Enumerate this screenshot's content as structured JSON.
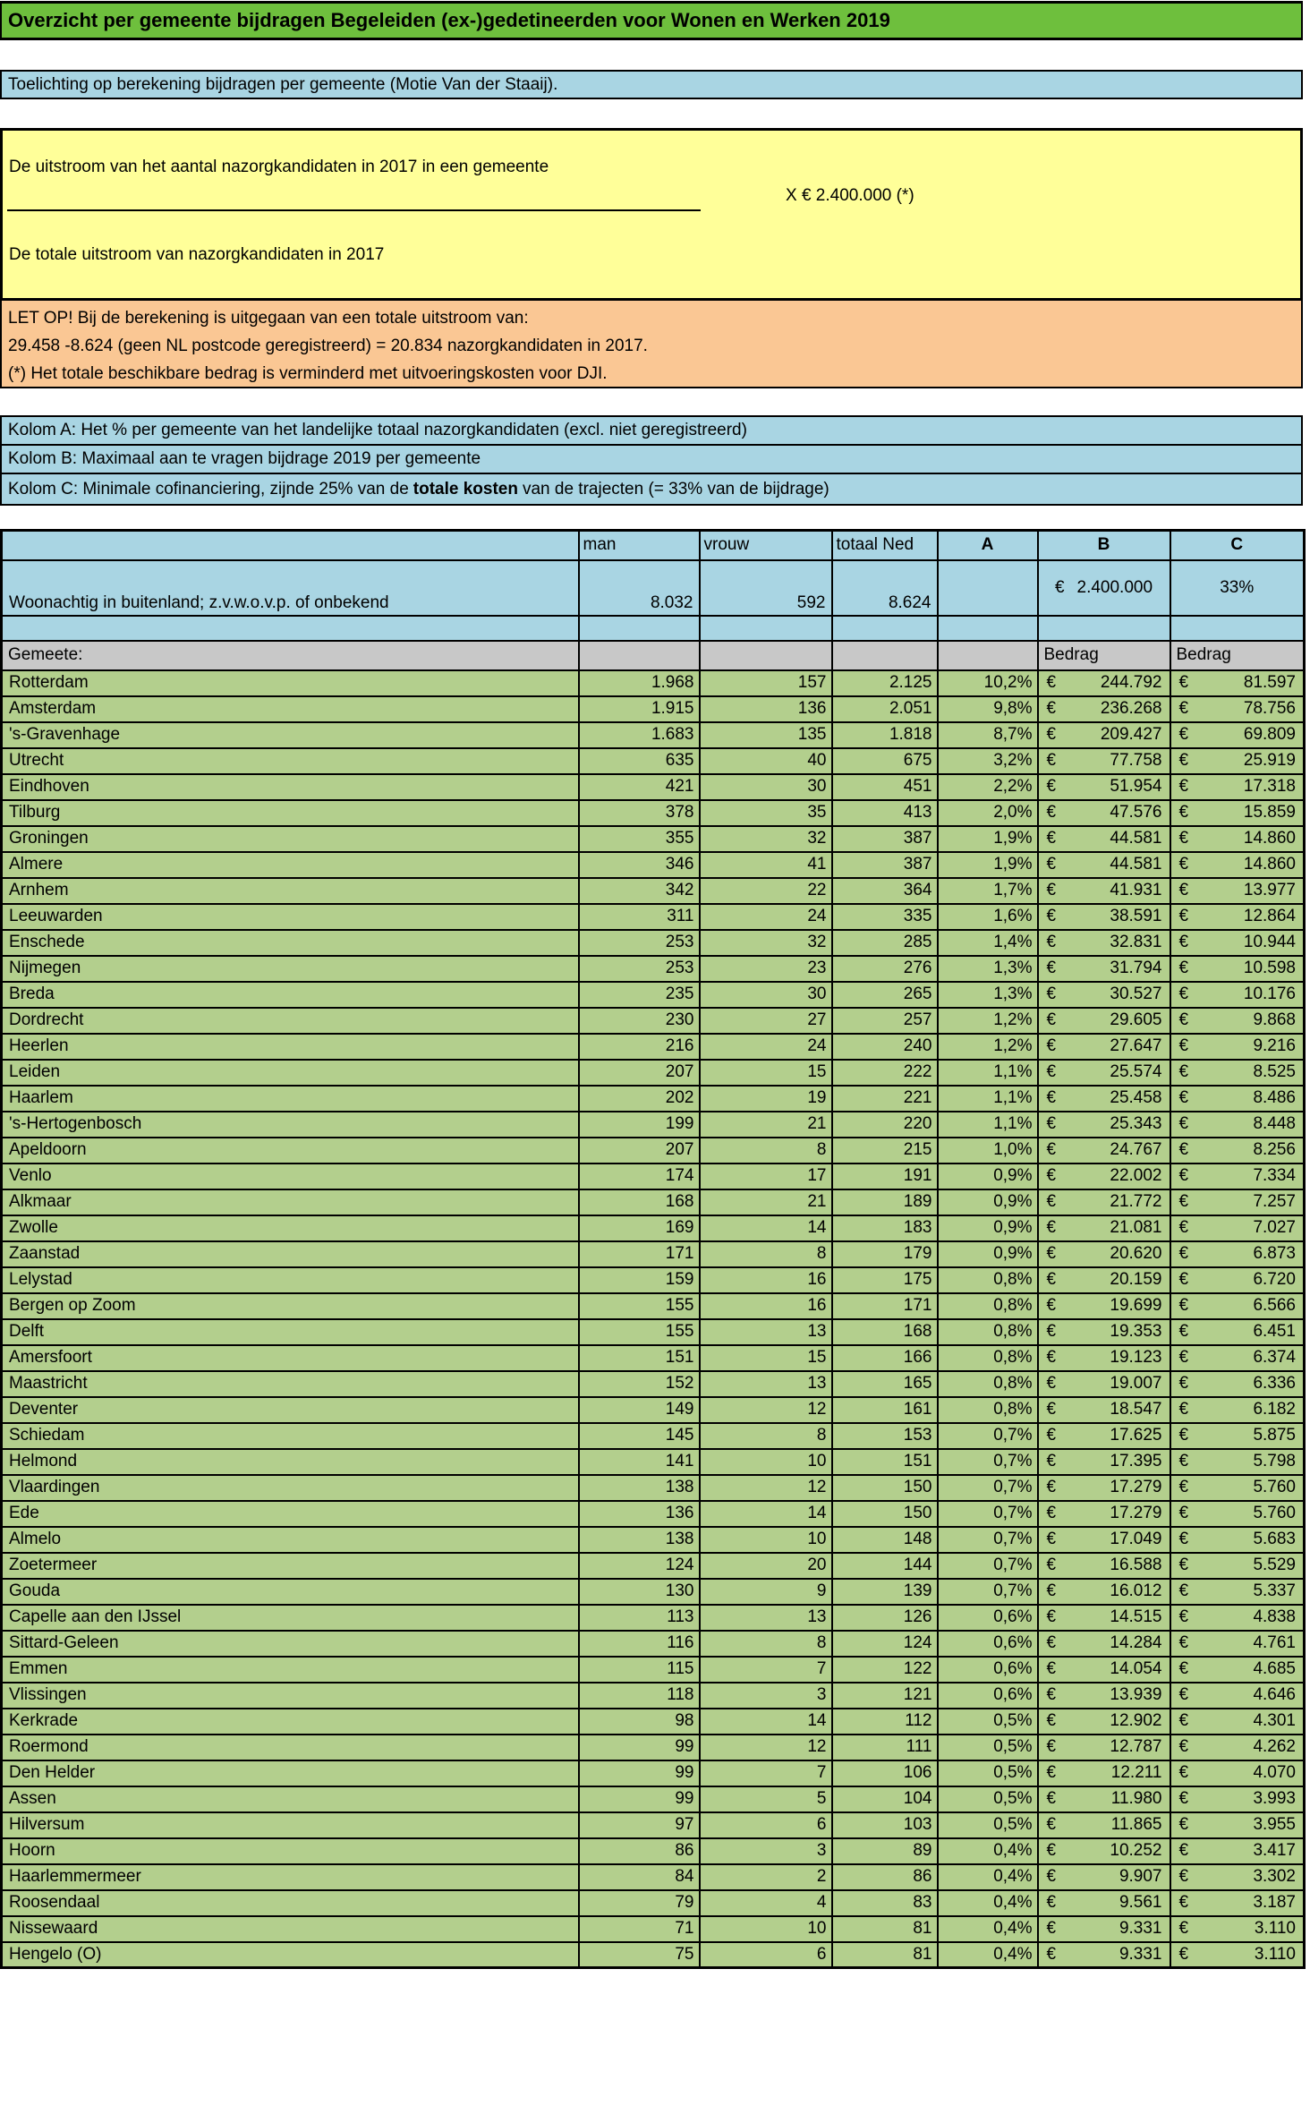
{
  "title": "Overzicht per gemeente bijdragen Begeleiden (ex-)gedetineerden voor Wonen en Werken 2019",
  "subtitle": "Toelichting op berekening bijdragen per gemeente (Motie Van der Staaij).",
  "formula": {
    "numerator": "De uitstroom van het aantal nazorgkandidaten in 2017  in een gemeente",
    "multiplier": "X  € 2.400.000 (*)",
    "denominator": "De totale uitstroom van nazorgkandidaten in 2017"
  },
  "note": {
    "line1": "LET OP! Bij de berekening is uitgegaan van een totale uitstroom van:",
    "line2": "29.458 -8.624 (geen NL postcode geregistreerd) =  20.834 nazorgkandidaten in 2017.",
    "line3": "(*) Het totale beschikbare bedrag is verminderd met uitvoeringskosten voor DJI."
  },
  "legend": {
    "a": "Kolom A: Het % per gemeente van het landelijke totaal nazorgkandidaten (excl. niet geregistreerd)",
    "b": "Kolom B: Maximaal aan te vragen bijdrage 2019 per gemeente",
    "c_prefix": "Kolom C: Minimale cofinanciering, zijnde 25% van de",
    "c_bold": "totale kosten",
    "c_suffix": "van de trajecten (= 33% van de bijdrage)"
  },
  "colors": {
    "title_green": "#6EBF3D",
    "band_blue": "#A9D5E3",
    "yellow": "#FFFF99",
    "orange": "#FAC794",
    "gray": "#C8C8C8",
    "row_green": "#B3CF8D"
  },
  "table": {
    "euro": "€",
    "headers": {
      "man": "man",
      "vrouw": "vrouw",
      "totaal": "totaal Ned",
      "a": "A",
      "b": "B",
      "c": "C"
    },
    "foreign_row": {
      "label": "Woonachtig in buitenland; z.v.w.o.v.p. of onbekend",
      "man": "8.032",
      "vrouw": "592",
      "totaal": "8.624",
      "b_euro": "€",
      "b_value": "2.400.000",
      "c_value": "33%"
    },
    "gemeente_label": "Gemeete:",
    "bedrag_label_b": "Bedrag",
    "bedrag_label_c": "Bedrag",
    "rows": [
      [
        "Rotterdam",
        "1.968",
        "157",
        "2.125",
        "10,2%",
        "244.792",
        "81.597"
      ],
      [
        "Amsterdam",
        "1.915",
        "136",
        "2.051",
        "9,8%",
        "236.268",
        "78.756"
      ],
      [
        "'s-Gravenhage",
        "1.683",
        "135",
        "1.818",
        "8,7%",
        "209.427",
        "69.809"
      ],
      [
        "Utrecht",
        "635",
        "40",
        "675",
        "3,2%",
        "77.758",
        "25.919"
      ],
      [
        "Eindhoven",
        "421",
        "30",
        "451",
        "2,2%",
        "51.954",
        "17.318"
      ],
      [
        "Tilburg",
        "378",
        "35",
        "413",
        "2,0%",
        "47.576",
        "15.859"
      ],
      [
        "Groningen",
        "355",
        "32",
        "387",
        "1,9%",
        "44.581",
        "14.860"
      ],
      [
        "Almere",
        "346",
        "41",
        "387",
        "1,9%",
        "44.581",
        "14.860"
      ],
      [
        "Arnhem",
        "342",
        "22",
        "364",
        "1,7%",
        "41.931",
        "13.977"
      ],
      [
        "Leeuwarden",
        "311",
        "24",
        "335",
        "1,6%",
        "38.591",
        "12.864"
      ],
      [
        "Enschede",
        "253",
        "32",
        "285",
        "1,4%",
        "32.831",
        "10.944"
      ],
      [
        "Nijmegen",
        "253",
        "23",
        "276",
        "1,3%",
        "31.794",
        "10.598"
      ],
      [
        "Breda",
        "235",
        "30",
        "265",
        "1,3%",
        "30.527",
        "10.176"
      ],
      [
        "Dordrecht",
        "230",
        "27",
        "257",
        "1,2%",
        "29.605",
        "9.868"
      ],
      [
        "Heerlen",
        "216",
        "24",
        "240",
        "1,2%",
        "27.647",
        "9.216"
      ],
      [
        "Leiden",
        "207",
        "15",
        "222",
        "1,1%",
        "25.574",
        "8.525"
      ],
      [
        "Haarlem",
        "202",
        "19",
        "221",
        "1,1%",
        "25.458",
        "8.486"
      ],
      [
        "'s-Hertogenbosch",
        "199",
        "21",
        "220",
        "1,1%",
        "25.343",
        "8.448"
      ],
      [
        "Apeldoorn",
        "207",
        "8",
        "215",
        "1,0%",
        "24.767",
        "8.256"
      ],
      [
        "Venlo",
        "174",
        "17",
        "191",
        "0,9%",
        "22.002",
        "7.334"
      ],
      [
        "Alkmaar",
        "168",
        "21",
        "189",
        "0,9%",
        "21.772",
        "7.257"
      ],
      [
        "Zwolle",
        "169",
        "14",
        "183",
        "0,9%",
        "21.081",
        "7.027"
      ],
      [
        "Zaanstad",
        "171",
        "8",
        "179",
        "0,9%",
        "20.620",
        "6.873"
      ],
      [
        "Lelystad",
        "159",
        "16",
        "175",
        "0,8%",
        "20.159",
        "6.720"
      ],
      [
        "Bergen op Zoom",
        "155",
        "16",
        "171",
        "0,8%",
        "19.699",
        "6.566"
      ],
      [
        "Delft",
        "155",
        "13",
        "168",
        "0,8%",
        "19.353",
        "6.451"
      ],
      [
        "Amersfoort",
        "151",
        "15",
        "166",
        "0,8%",
        "19.123",
        "6.374"
      ],
      [
        "Maastricht",
        "152",
        "13",
        "165",
        "0,8%",
        "19.007",
        "6.336"
      ],
      [
        "Deventer",
        "149",
        "12",
        "161",
        "0,8%",
        "18.547",
        "6.182"
      ],
      [
        "Schiedam",
        "145",
        "8",
        "153",
        "0,7%",
        "17.625",
        "5.875"
      ],
      [
        "Helmond",
        "141",
        "10",
        "151",
        "0,7%",
        "17.395",
        "5.798"
      ],
      [
        "Vlaardingen",
        "138",
        "12",
        "150",
        "0,7%",
        "17.279",
        "5.760"
      ],
      [
        "Ede",
        "136",
        "14",
        "150",
        "0,7%",
        "17.279",
        "5.760"
      ],
      [
        "Almelo",
        "138",
        "10",
        "148",
        "0,7%",
        "17.049",
        "5.683"
      ],
      [
        "Zoetermeer",
        "124",
        "20",
        "144",
        "0,7%",
        "16.588",
        "5.529"
      ],
      [
        "Gouda",
        "130",
        "9",
        "139",
        "0,7%",
        "16.012",
        "5.337"
      ],
      [
        "Capelle aan den IJssel",
        "113",
        "13",
        "126",
        "0,6%",
        "14.515",
        "4.838"
      ],
      [
        "Sittard-Geleen",
        "116",
        "8",
        "124",
        "0,6%",
        "14.284",
        "4.761"
      ],
      [
        "Emmen",
        "115",
        "7",
        "122",
        "0,6%",
        "14.054",
        "4.685"
      ],
      [
        "Vlissingen",
        "118",
        "3",
        "121",
        "0,6%",
        "13.939",
        "4.646"
      ],
      [
        "Kerkrade",
        "98",
        "14",
        "112",
        "0,5%",
        "12.902",
        "4.301"
      ],
      [
        "Roermond",
        "99",
        "12",
        "111",
        "0,5%",
        "12.787",
        "4.262"
      ],
      [
        "Den Helder",
        "99",
        "7",
        "106",
        "0,5%",
        "12.211",
        "4.070"
      ],
      [
        "Assen",
        "99",
        "5",
        "104",
        "0,5%",
        "11.980",
        "3.993"
      ],
      [
        "Hilversum",
        "97",
        "6",
        "103",
        "0,5%",
        "11.865",
        "3.955"
      ],
      [
        "Hoorn",
        "86",
        "3",
        "89",
        "0,4%",
        "10.252",
        "3.417"
      ],
      [
        "Haarlemmermeer",
        "84",
        "2",
        "86",
        "0,4%",
        "9.907",
        "3.302"
      ],
      [
        "Roosendaal",
        "79",
        "4",
        "83",
        "0,4%",
        "9.561",
        "3.187"
      ],
      [
        "Nissewaard",
        "71",
        "10",
        "81",
        "0,4%",
        "9.331",
        "3.110"
      ],
      [
        "Hengelo (O)",
        "75",
        "6",
        "81",
        "0,4%",
        "9.331",
        "3.110"
      ]
    ]
  }
}
